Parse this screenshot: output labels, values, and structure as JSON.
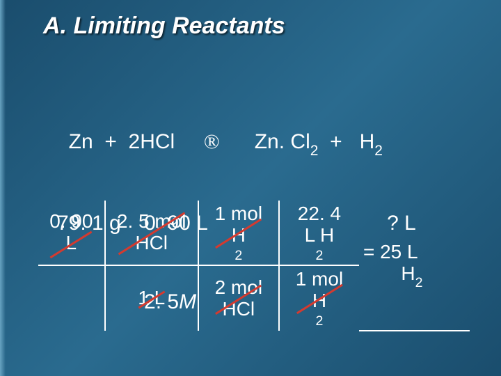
{
  "title": "A. Limiting Reactants",
  "equation": {
    "line1_left": "  Zn  +  2HCl",
    "arrow": "®",
    "line1_right_a": "Zn. Cl",
    "line1_right_a_sub": "2",
    "line1_right_b": "  +   H",
    "line1_right_b_sub": "2",
    "line2_left": "79. 1 g    0. 90 L",
    "line2_right": "? L",
    "line3": "               2. 5",
    "line3_ital": "M"
  },
  "calc": {
    "r1c1_top": "0. 90",
    "r1c1_bot": "L",
    "r1c2_top": "2. 5 mol",
    "r1c2_bot": "HCl",
    "r1c3_top": "1 mol",
    "r1c3_bot_a": "H",
    "r1c3_bot_sub": "2",
    "r1c4_top": "22. 4",
    "r1c4_bot_a": "L H",
    "r1c4_bot_sub": "2",
    "r2c2": "1 L",
    "r2c3_top": "2 mol",
    "r2c3_bot": "HCl",
    "r2c4_top": "1 mol",
    "r2c4_bot_a": "H",
    "r2c4_bot_sub": "2",
    "result_top": "= 25 L",
    "result_bot_a": "       H",
    "result_bot_sub": "2"
  },
  "colors": {
    "text": "#ffffff",
    "strike": "#d43a2f",
    "bg1": "#1a4d6d",
    "bg2": "#2a6b8f"
  },
  "fontsize": {
    "title": 34,
    "body": 30,
    "calc": 28
  }
}
